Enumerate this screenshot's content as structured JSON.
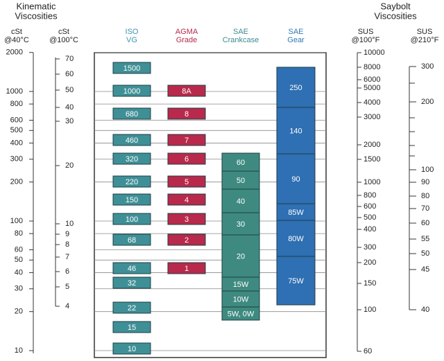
{
  "titles": {
    "left": [
      "Kinematic",
      "Viscosities"
    ],
    "right": [
      "Saybolt",
      "Viscosities"
    ]
  },
  "scales": [
    {
      "unit": "cSt",
      "temp": "@40°C",
      "ticks": [
        2000,
        1000,
        800,
        600,
        500,
        400,
        300,
        200,
        100,
        80,
        60,
        50,
        40,
        30,
        20,
        10
      ]
    },
    {
      "unit": "cSt",
      "temp": "@100°C",
      "ticks": [
        70,
        60,
        50,
        40,
        30,
        20,
        10,
        9,
        8,
        7,
        6,
        5,
        4
      ]
    },
    {
      "unit": "SUS",
      "temp": "@100°F",
      "ticks": [
        10000,
        8000,
        6000,
        5000,
        4000,
        3000,
        2000,
        1500,
        1000,
        800,
        600,
        500,
        400,
        300,
        200,
        150,
        100,
        60
      ]
    },
    {
      "unit": "SUS",
      "temp": "@210°F",
      "ticks": [
        300,
        200,
        100,
        90,
        80,
        70,
        60,
        55,
        50,
        45,
        40
      ]
    }
  ],
  "columns": [
    {
      "name": [
        "ISO",
        "VG"
      ],
      "items": [
        "1500",
        "1000",
        "680",
        "460",
        "320",
        "220",
        "150",
        "100",
        "68",
        "46",
        "32",
        "22",
        "15",
        "10"
      ]
    },
    {
      "name": [
        "AGMA",
        "Grade"
      ],
      "items": [
        "8A",
        "8",
        "7",
        "6",
        "5",
        "4",
        "3",
        "2",
        "1"
      ]
    },
    {
      "name": [
        "SAE",
        "Crankcase"
      ],
      "items": [
        "60",
        "50",
        "40",
        "30",
        "20",
        "15W",
        "10W",
        "5W, 0W"
      ]
    },
    {
      "name": [
        "SAE",
        "Gear"
      ],
      "items": [
        "250",
        "140",
        "90",
        "85W",
        "80W",
        "75W"
      ]
    }
  ]
}
